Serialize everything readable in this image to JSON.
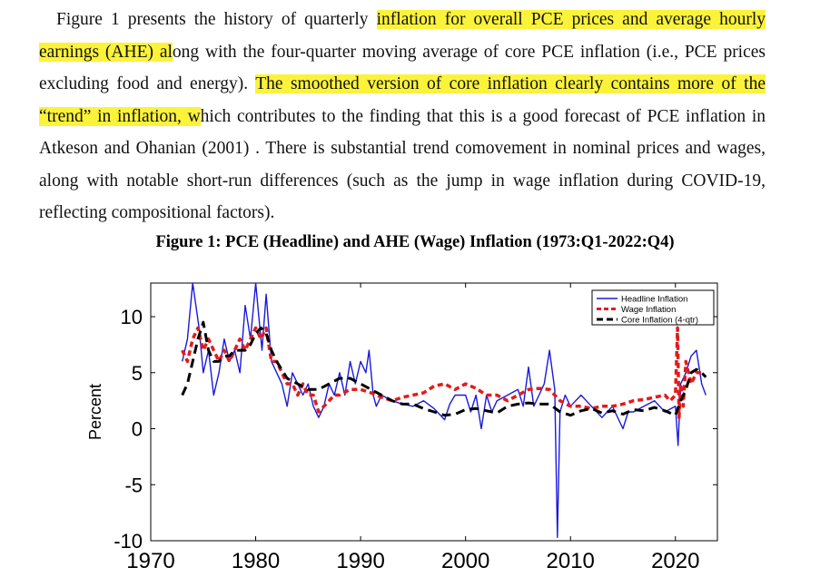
{
  "paragraph": {
    "seg1": "Figure 1 presents the history of quarterly ",
    "hl1": "inflation for overall PCE prices and average hourly earnings (AHE) al",
    "seg2": "ong with the four-quarter moving average of core PCE inflation (i.e., PCE prices excluding food and energy). ",
    "hl2": "The smoothed version of core inflation clearly contains more of the “trend” in inflation, w",
    "seg3": "hich contributes to the finding that this is a good forecast of PCE inflation in Atkeson and Ohanian (2001) . There is substantial trend comovement in nominal prices and wages, along with notable short-run differences (such as the jump in wage inflation during COVID-19, reflecting compositional factors)."
  },
  "figure": {
    "title": "Figure 1: PCE (Headline) and AHE (Wage) Inflation (1973:Q1-2022:Q4)"
  },
  "colors": {
    "headline": "#1a1adc",
    "wage": "#e31b1b",
    "core": "#000000",
    "highlight": "#fbf33a"
  },
  "chart_data": {
    "type": "line",
    "title": "",
    "xlabel": "",
    "ylabel": "Percent",
    "xlim": [
      1970,
      2024
    ],
    "ylim": [
      -10,
      13
    ],
    "xticks": [
      1970,
      1980,
      1990,
      2000,
      2010,
      2020
    ],
    "yticks": [
      -10,
      -5,
      0,
      5,
      10
    ],
    "legend": "top-right",
    "series": [
      {
        "name": "Headline Inflation",
        "style": "solid",
        "x": [
          1973.0,
          1973.5,
          1974.0,
          1974.3,
          1974.6,
          1975.0,
          1975.5,
          1976.0,
          1976.5,
          1977.0,
          1977.5,
          1978.0,
          1978.5,
          1979.0,
          1979.5,
          1980.0,
          1980.3,
          1980.6,
          1981.0,
          1981.5,
          1982.0,
          1982.5,
          1983.0,
          1983.5,
          1984.0,
          1984.5,
          1985.0,
          1985.5,
          1986.0,
          1986.5,
          1987.0,
          1987.5,
          1988.0,
          1988.5,
          1989.0,
          1989.5,
          1990.0,
          1990.5,
          1990.8,
          1991.2,
          1991.5,
          1992.0,
          1993.0,
          1994.0,
          1995.0,
          1996.0,
          1997.0,
          1998.0,
          1998.5,
          1999.0,
          2000.0,
          2000.5,
          2001.0,
          2001.5,
          2002.0,
          2002.5,
          2003.0,
          2004.0,
          2005.0,
          2005.5,
          2006.0,
          2006.5,
          2007.0,
          2007.5,
          2008.0,
          2008.5,
          2008.75,
          2009.0,
          2009.5,
          2010.0,
          2011.0,
          2011.5,
          2012.0,
          2013.0,
          2014.0,
          2015.0,
          2015.5,
          2016.0,
          2017.0,
          2018.0,
          2019.0,
          2020.0,
          2020.25,
          2020.5,
          2021.0,
          2021.5,
          2022.0,
          2022.5,
          2022.9
        ],
        "values": [
          6,
          8,
          13,
          11,
          9,
          5,
          7,
          3,
          5,
          8,
          6,
          7,
          5,
          11,
          8,
          13,
          10,
          7,
          12,
          6,
          5,
          4,
          2,
          5,
          4,
          3,
          4,
          2,
          1,
          2,
          4,
          3,
          5,
          3,
          6,
          4,
          6,
          5,
          7,
          3,
          2,
          3,
          2.5,
          2.2,
          2,
          2.5,
          1.8,
          0.8,
          2.2,
          3,
          3,
          1.5,
          3,
          0,
          3,
          1.5,
          2.5,
          3,
          3.5,
          2,
          5.5,
          2,
          3,
          4,
          7,
          3.5,
          -9.7,
          1.5,
          3,
          2,
          3,
          2.5,
          2,
          1,
          2,
          0,
          1.5,
          1.5,
          2,
          2.5,
          1.5,
          2,
          -1.5,
          4,
          5,
          6.5,
          7,
          4,
          3
        ]
      },
      {
        "name": "Wage Inflation",
        "style": "dash-thick",
        "x": [
          1973.0,
          1973.5,
          1974.0,
          1974.5,
          1975.0,
          1975.5,
          1976.0,
          1976.5,
          1977.0,
          1977.5,
          1978.0,
          1978.5,
          1979.0,
          1979.5,
          1980.0,
          1980.5,
          1981.0,
          1981.5,
          1982.0,
          1982.5,
          1983.0,
          1983.5,
          1984.0,
          1984.5,
          1985.0,
          1985.5,
          1986.0,
          1986.5,
          1987.0,
          1987.5,
          1988.0,
          1989.0,
          1990.0,
          1991.0,
          1992.0,
          1993.0,
          1994.0,
          1995.0,
          1996.0,
          1997.0,
          1998.0,
          1999.0,
          2000.0,
          2001.0,
          2002.0,
          2003.0,
          2004.0,
          2005.0,
          2006.0,
          2007.0,
          2008.0,
          2009.0,
          2010.0,
          2011.0,
          2012.0,
          2013.0,
          2014.0,
          2015.0,
          2016.0,
          2017.0,
          2018.0,
          2019.0,
          2019.5,
          2020.0,
          2020.2,
          2020.35,
          2020.5,
          2020.75,
          2021.0,
          2021.5,
          2022.0,
          2022.5
        ],
        "values": [
          7,
          6,
          8,
          9,
          7,
          8,
          7,
          6,
          7,
          6,
          7,
          8,
          7,
          8,
          9,
          8,
          9,
          6,
          6,
          5,
          4,
          4,
          3,
          4,
          3,
          3,
          1.5,
          2,
          2.5,
          3,
          3,
          3.5,
          3.5,
          3.2,
          2.8,
          2.5,
          2.8,
          3,
          3.2,
          3.8,
          4,
          3.5,
          4,
          3.6,
          3,
          3,
          2.5,
          3,
          3.5,
          3.6,
          3.5,
          2.5,
          2,
          2,
          1.8,
          2,
          2,
          2.2,
          2.5,
          2.6,
          2.8,
          3,
          2.5,
          3,
          9,
          1,
          4,
          2,
          6,
          4,
          5,
          5
        ]
      },
      {
        "name": "Core Inflation (4-qtr)",
        "style": "dash",
        "x": [
          1973.0,
          1973.5,
          1974.0,
          1974.5,
          1975.0,
          1975.5,
          1976.0,
          1976.5,
          1977.0,
          1977.5,
          1978.0,
          1979.0,
          1979.5,
          1980.0,
          1980.5,
          1981.0,
          1981.5,
          1982.0,
          1983.0,
          1984.0,
          1985.0,
          1986.0,
          1987.0,
          1988.0,
          1989.0,
          1990.0,
          1991.0,
          1992.0,
          1993.0,
          1994.0,
          1995.0,
          1996.0,
          1997.0,
          1998.0,
          1999.0,
          2000.0,
          2001.0,
          2002.0,
          2003.0,
          2004.0,
          2005.0,
          2006.0,
          2007.0,
          2008.0,
          2009.0,
          2010.0,
          2011.0,
          2012.0,
          2013.0,
          2014.0,
          2015.0,
          2016.0,
          2017.0,
          2018.0,
          2019.0,
          2020.0,
          2020.5,
          2021.0,
          2021.5,
          2022.0,
          2022.5,
          2022.9
        ],
        "values": [
          3,
          4,
          6,
          8,
          9.5,
          7,
          6,
          6,
          6.5,
          6.5,
          7,
          7,
          7.5,
          8.5,
          9,
          8.5,
          7,
          6,
          4.5,
          4,
          3.5,
          3.5,
          4,
          4.5,
          4.5,
          4,
          3.5,
          3,
          2.5,
          2.2,
          2.2,
          1.8,
          1.5,
          1.2,
          1.3,
          1.7,
          1.8,
          1.6,
          1.4,
          2,
          2.2,
          2.3,
          2.2,
          2.2,
          1.5,
          1.2,
          1.6,
          1.8,
          1.4,
          1.6,
          1.3,
          1.7,
          1.6,
          1.9,
          1.6,
          1.2,
          2.5,
          3.5,
          5,
          5.3,
          5,
          4.6
        ]
      }
    ]
  }
}
